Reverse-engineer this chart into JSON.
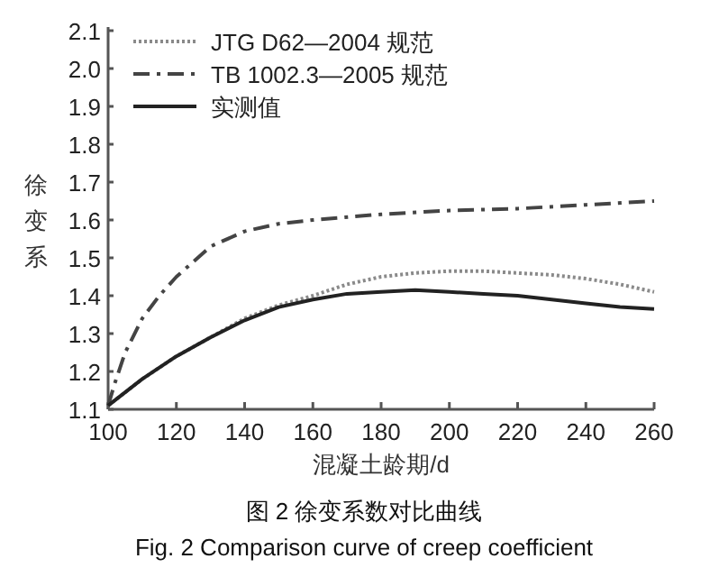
{
  "chart_data": {
    "type": "line",
    "xlabel": "混凝土龄期/d",
    "ylabel": "徐变系",
    "xlim": [
      100,
      260
    ],
    "ylim": [
      1.1,
      2.1
    ],
    "xticks": [
      100,
      120,
      140,
      160,
      180,
      200,
      220,
      240,
      260
    ],
    "yticks": [
      {
        "value": 1.1,
        "label": "1.1"
      },
      {
        "value": 1.2,
        "label": "1.2"
      },
      {
        "value": 1.3,
        "label": "1.3"
      },
      {
        "value": 1.4,
        "label": "1.4"
      },
      {
        "value": 1.5,
        "label": "1.5"
      },
      {
        "value": 1.6,
        "label": "1.6"
      },
      {
        "value": 1.7,
        "label": "1.7"
      },
      {
        "value": 1.8,
        "label": "1.8"
      },
      {
        "value": 1.9,
        "label": "1.9"
      },
      {
        "value": 2.0,
        "label": "2.0"
      },
      {
        "value": 2.1,
        "label": "2.1"
      }
    ],
    "legend": "top left",
    "grid": false,
    "marker": "none",
    "series": [
      {
        "name": "JTG D62—2004 规范",
        "color": "#8a8a8a",
        "line_style": "dotted",
        "x": [
          100,
          110,
          120,
          130,
          140,
          150,
          160,
          170,
          180,
          190,
          200,
          210,
          220,
          230,
          240,
          250,
          260
        ],
        "values": [
          1.11,
          1.18,
          1.24,
          1.29,
          1.34,
          1.375,
          1.4,
          1.43,
          1.45,
          1.46,
          1.465,
          1.465,
          1.46,
          1.455,
          1.445,
          1.43,
          1.41
        ]
      },
      {
        "name": "TB 1002.3—2005 规范",
        "color": "#444444",
        "line_style": "dashdot",
        "x": [
          100,
          102,
          105,
          110,
          115,
          120,
          130,
          140,
          150,
          160,
          180,
          200,
          220,
          240,
          260
        ],
        "values": [
          1.11,
          1.17,
          1.25,
          1.34,
          1.4,
          1.45,
          1.53,
          1.57,
          1.59,
          1.6,
          1.615,
          1.625,
          1.63,
          1.64,
          1.65
        ]
      },
      {
        "name": "实测值",
        "color": "#222222",
        "line_style": "solid",
        "x": [
          100,
          110,
          120,
          130,
          140,
          150,
          160,
          170,
          180,
          190,
          200,
          210,
          220,
          230,
          240,
          250,
          260
        ],
        "values": [
          1.11,
          1.18,
          1.24,
          1.29,
          1.335,
          1.37,
          1.39,
          1.405,
          1.41,
          1.415,
          1.41,
          1.405,
          1.4,
          1.39,
          1.38,
          1.37,
          1.365
        ]
      }
    ],
    "annotations": [
      "图 2 徐变系数对比曲线",
      "Fig. 2 Comparison curve of creep coefficient"
    ]
  }
}
